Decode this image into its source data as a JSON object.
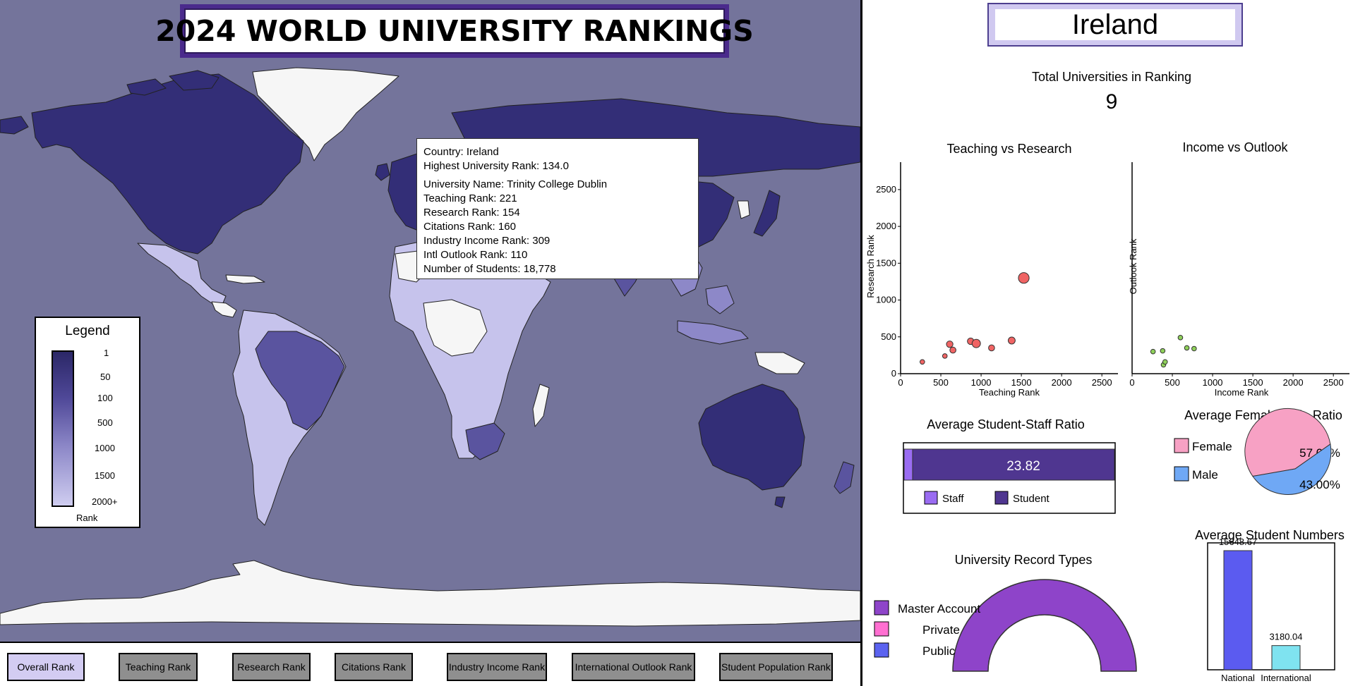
{
  "title": "2024 WORLD UNIVERSITY RANKINGS",
  "colors": {
    "map_background": "#74749b",
    "rank_dark": "#2b2767",
    "rank_light": "#cfcdf0",
    "title_frame": "#4a2a8c",
    "active_filter": "#d3ccf2",
    "inactive_filter": "#8f8f8f"
  },
  "tooltip": {
    "country": "Country: Ireland",
    "highest_rank": "Highest University Rank: 134.0",
    "university": "University Name: Trinity College Dublin",
    "teaching": "Teaching Rank: 221",
    "research": "Research Rank: 154",
    "citations": "Citations Rank: 160",
    "industry": "Industry Income Rank: 309",
    "outlook": "Intl Outlook Rank: 110",
    "students": "Number of Students: 18,778"
  },
  "legend": {
    "title": "Legend",
    "ticks": [
      "1",
      "50",
      "100",
      "500",
      "1000",
      "1500",
      "2000+"
    ],
    "label": "Rank"
  },
  "filters": [
    {
      "label": "Overall Rank",
      "active": true
    },
    {
      "label": "Teaching Rank",
      "active": false
    },
    {
      "label": "Research Rank",
      "active": false
    },
    {
      "label": "Citations Rank",
      "active": false
    },
    {
      "label": "Industry Income Rank",
      "active": false
    },
    {
      "label": "International Outlook Rank",
      "active": false
    },
    {
      "label": "Student Population Rank",
      "active": false
    }
  ],
  "selected_country": "Ireland",
  "total_label": "Total Universities in Ranking",
  "total_value": "9",
  "chart_data": [
    {
      "type": "scatter",
      "title": "Teaching vs Research",
      "xlabel": "Teaching Rank",
      "ylabel": "Research Rank",
      "xlim": [
        0,
        2700
      ],
      "ylim": [
        0,
        2700
      ],
      "xticks": [
        "0",
        "500",
        "1000",
        "1500",
        "2000",
        "2500"
      ],
      "yticks": [
        "0",
        "500",
        "1000",
        "1500",
        "2000",
        "2500"
      ],
      "color": "#f06464",
      "points": [
        {
          "x": 270,
          "y": 160,
          "s": 1
        },
        {
          "x": 550,
          "y": 240,
          "s": 1
        },
        {
          "x": 610,
          "y": 400,
          "s": 1.4
        },
        {
          "x": 650,
          "y": 320,
          "s": 1.3
        },
        {
          "x": 870,
          "y": 440,
          "s": 1.4
        },
        {
          "x": 940,
          "y": 410,
          "s": 1.8
        },
        {
          "x": 1130,
          "y": 350,
          "s": 1.3
        },
        {
          "x": 1380,
          "y": 450,
          "s": 1.5
        },
        {
          "x": 1530,
          "y": 1300,
          "s": 2.3
        }
      ]
    },
    {
      "type": "scatter",
      "title": "Income vs Outlook",
      "xlabel": "Income Rank",
      "ylabel": "Outlook Rank",
      "xlim": [
        0,
        2700
      ],
      "ylim": [
        0,
        2700
      ],
      "xticks": [
        "0",
        "500",
        "1000",
        "1500",
        "2000",
        "2500"
      ],
      "color": "#8fd05a",
      "points": [
        {
          "x": 260,
          "y": 300
        },
        {
          "x": 380,
          "y": 310
        },
        {
          "x": 390,
          "y": 120
        },
        {
          "x": 410,
          "y": 160
        },
        {
          "x": 600,
          "y": 490
        },
        {
          "x": 680,
          "y": 350
        },
        {
          "x": 770,
          "y": 340
        }
      ]
    },
    {
      "type": "bar",
      "title": "Average Student-Staff Ratio",
      "orientation": "horizontal-stacked",
      "series": [
        {
          "name": "Staff",
          "value": 1,
          "color": "#9a6cf2"
        },
        {
          "name": "Student",
          "value": 23.82,
          "color": "#4f3690"
        }
      ],
      "value_label": "23.82"
    },
    {
      "type": "pie",
      "title": "Average Female-Male Ratio",
      "slices": [
        {
          "name": "Female",
          "value": 57.0,
          "label": "57.00%",
          "color": "#f7a1c4"
        },
        {
          "name": "Male",
          "value": 43.0,
          "label": "43.00%",
          "color": "#6fa8f5"
        }
      ]
    },
    {
      "type": "pie",
      "title": "University Record Types",
      "shape": "half-donut",
      "slices": [
        {
          "name": "Master Account",
          "value": 100,
          "color": "#8e44c9"
        },
        {
          "name": "Private",
          "value": 0,
          "color": "#ff6fd1"
        },
        {
          "name": "Public",
          "value": 0,
          "color": "#5b63f0"
        }
      ]
    },
    {
      "type": "bar",
      "title": "Average Student Numbers",
      "categories": [
        "National",
        "International"
      ],
      "values": [
        15648.67,
        3180.04
      ],
      "labels": [
        "15648.67",
        "3180.04"
      ],
      "colors": [
        "#5b5bf0",
        "#7fe3f0"
      ],
      "ylim": [
        0,
        40000
      ]
    }
  ]
}
